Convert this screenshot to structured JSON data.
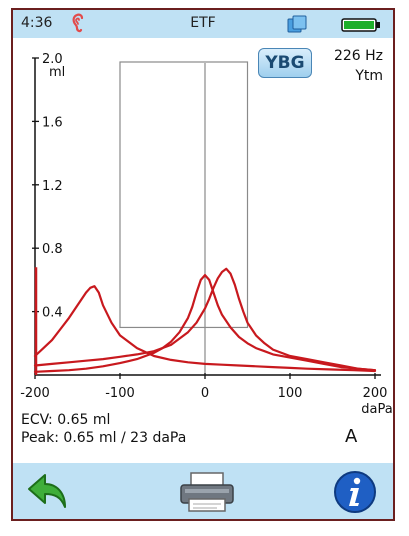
{
  "status": {
    "time": "4:36",
    "title": "ETF",
    "icons": [
      "ear-icon",
      "window-icon",
      "battery-icon"
    ]
  },
  "header": {
    "ybg_label": "YBG",
    "frequency": "226 Hz",
    "measure": "Ytm"
  },
  "chart_data": {
    "type": "line",
    "y_unit": "ml",
    "x_unit": "daPa",
    "xlim": [
      -200,
      200
    ],
    "ylim": [
      0,
      2.0
    ],
    "y_ticks": [
      "2.0",
      "1.6",
      "1.2",
      "0.8",
      "0.4"
    ],
    "x_ticks": [
      "-200",
      "-100",
      "0",
      "100",
      "200"
    ],
    "box": {
      "x": [
        -100,
        50
      ],
      "y": [
        0.3,
        2.0
      ]
    },
    "series": [
      {
        "x": [
          -200,
          -190,
          -180,
          -170,
          -160,
          -150,
          -140,
          -135,
          -130,
          -125,
          -120,
          -110,
          -100,
          -80,
          -60,
          -40,
          -20,
          0,
          20,
          40,
          60,
          80,
          100,
          120,
          150,
          175,
          200
        ],
        "values": [
          0.12,
          0.17,
          0.22,
          0.29,
          0.36,
          0.44,
          0.52,
          0.55,
          0.56,
          0.52,
          0.44,
          0.33,
          0.25,
          0.17,
          0.12,
          0.095,
          0.08,
          0.07,
          0.065,
          0.06,
          0.055,
          0.05,
          0.045,
          0.04,
          0.035,
          0.03,
          0.025
        ]
      },
      {
        "x": [
          -200,
          -180,
          -160,
          -140,
          -120,
          -100,
          -80,
          -60,
          -50,
          -40,
          -30,
          -20,
          -15,
          -10,
          -5,
          0,
          5,
          10,
          15,
          20,
          30,
          40,
          50,
          60,
          70,
          80,
          100,
          120,
          140,
          160,
          180,
          200
        ],
        "values": [
          0.02,
          0.025,
          0.03,
          0.04,
          0.055,
          0.075,
          0.1,
          0.14,
          0.17,
          0.21,
          0.27,
          0.36,
          0.43,
          0.52,
          0.6,
          0.63,
          0.6,
          0.52,
          0.44,
          0.38,
          0.3,
          0.24,
          0.2,
          0.17,
          0.15,
          0.13,
          0.11,
          0.09,
          0.07,
          0.05,
          0.04,
          0.03
        ]
      },
      {
        "x": [
          -200,
          -180,
          -160,
          -140,
          -120,
          -100,
          -80,
          -60,
          -40,
          -20,
          -10,
          0,
          5,
          10,
          15,
          20,
          25,
          30,
          35,
          40,
          45,
          50,
          60,
          70,
          80,
          100,
          120,
          140,
          160,
          180,
          200
        ],
        "values": [
          0.06,
          0.07,
          0.08,
          0.09,
          0.1,
          0.115,
          0.13,
          0.15,
          0.19,
          0.27,
          0.33,
          0.42,
          0.48,
          0.55,
          0.61,
          0.65,
          0.67,
          0.64,
          0.57,
          0.48,
          0.4,
          0.33,
          0.25,
          0.2,
          0.16,
          0.12,
          0.1,
          0.08,
          0.06,
          0.04,
          0.03
        ]
      }
    ]
  },
  "info": {
    "ecv": "ECV: 0.65 ml",
    "peak": "Peak: 0.65 ml / 23 daPa",
    "ear_side": "A"
  },
  "colors": {
    "trace": "#c8191e",
    "bar_bg": "#bfe1f4",
    "box": "#8a8a8a"
  }
}
